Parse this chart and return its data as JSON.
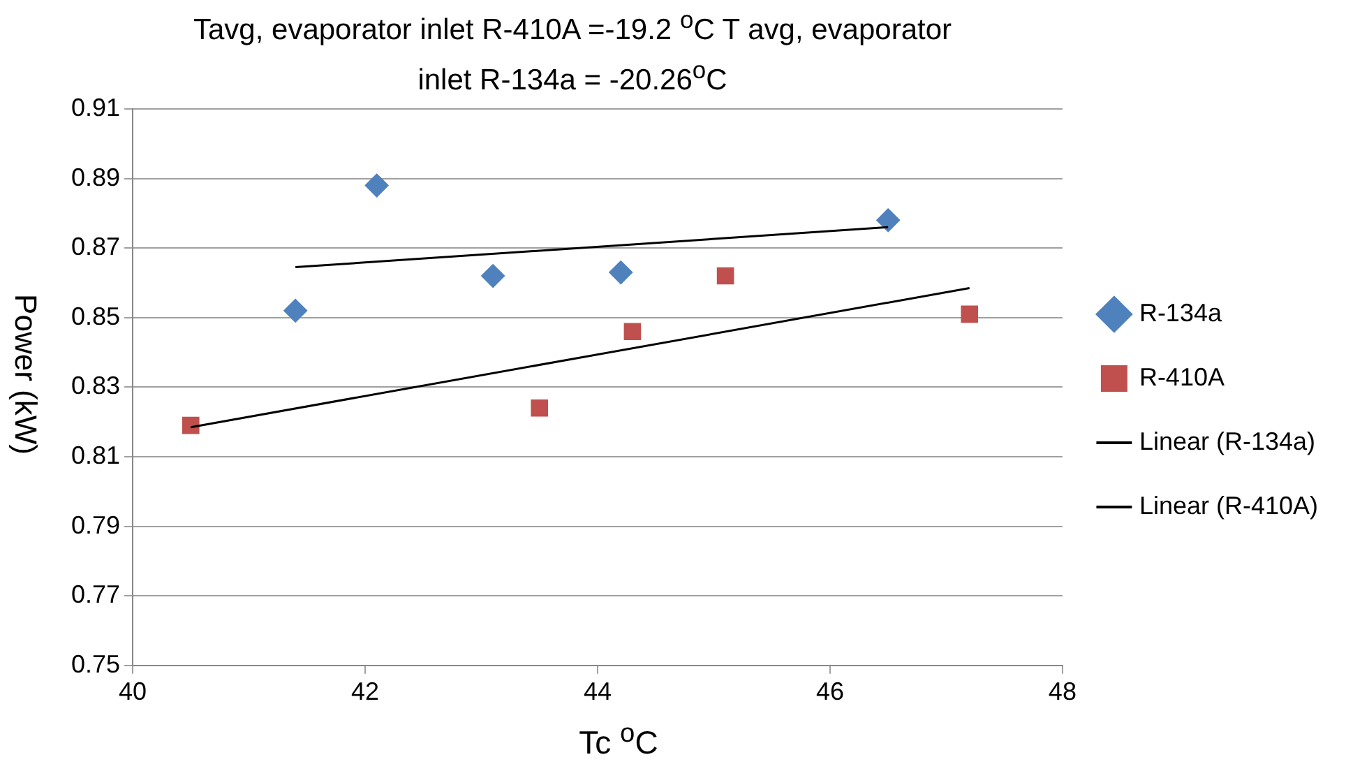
{
  "chart_data": {
    "type": "scatter",
    "title": "Tavg, evaporator inlet  R-410A =-19.2 $^{o}$C  T avg, evaporator inlet  R-134a = -20.26$^{o}$C",
    "xlabel": "Tc $^{o}$C",
    "ylabel": "Power (kW)",
    "xlim": [
      40,
      48
    ],
    "xticks": [
      40,
      42,
      44,
      46,
      48
    ],
    "ylim": [
      0.75,
      0.91
    ],
    "yticks": [
      0.75,
      0.77,
      0.79,
      0.81,
      0.83,
      0.85,
      0.87,
      0.89,
      0.91
    ],
    "grid": "y",
    "legend": "right",
    "series": [
      {
        "name": "R-134a",
        "type": "scatter",
        "marker": "diamond",
        "color": "#4f81bd",
        "x": [
          41.4,
          42.1,
          43.1,
          44.2,
          46.5
        ],
        "values": [
          0.852,
          0.888,
          0.862,
          0.863,
          0.878
        ]
      },
      {
        "name": "R-410A",
        "type": "scatter",
        "marker": "square",
        "color": "#c0504d",
        "x": [
          40.5,
          43.5,
          44.3,
          45.1,
          47.2
        ],
        "values": [
          0.819,
          0.824,
          0.846,
          0.862,
          0.851
        ]
      },
      {
        "name": "Linear (R-134a)",
        "type": "line",
        "marker": "none",
        "line_style": "solid",
        "color": "#000000",
        "x": [
          41.4,
          46.5
        ],
        "values": [
          0.8645,
          0.876
        ]
      },
      {
        "name": "Linear (R-410A)",
        "type": "line",
        "marker": "none",
        "line_style": "solid",
        "color": "#000000",
        "x": [
          40.5,
          47.2
        ],
        "values": [
          0.8185,
          0.8585
        ]
      }
    ]
  }
}
